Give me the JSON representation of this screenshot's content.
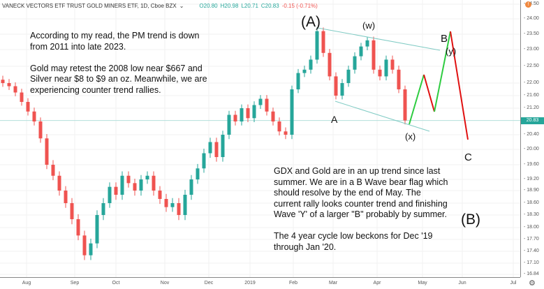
{
  "header": {
    "symbol": "VANECK VECTORS ETF TRUST GOLD MINERS ETF, 1D, Cboe BZX",
    "open": "O20.80",
    "high": "H20.98",
    "low": "L20.71",
    "close": "C20.83",
    "change": "-0.15 (-0.71%)"
  },
  "colors": {
    "up": "#26a69a",
    "down": "#ef5350",
    "channel": "#80cbc4",
    "wave_up": "#2ecc40",
    "wave_down": "#e01010"
  },
  "chart_data": {
    "type": "candlestick",
    "y_scale": "log",
    "current_price": "20.83",
    "y_ticks": [
      "24.50",
      "24.00",
      "23.50",
      "23.00",
      "22.50",
      "22.00",
      "21.60",
      "21.20",
      "20.40",
      "20.00",
      "19.60",
      "19.20",
      "18.90",
      "18.60",
      "18.30",
      "18.00",
      "17.70",
      "17.40",
      "17.10",
      "16.84"
    ],
    "x_ticks": [
      "Aug",
      "Sep",
      "Oct",
      "Nov",
      "Dec",
      "2019",
      "Feb",
      "Mar",
      "Apr",
      "May",
      "Jun",
      "Jul"
    ],
    "closes": [
      22.0,
      21.9,
      21.7,
      21.4,
      21.1,
      20.8,
      20.3,
      19.6,
      19.3,
      18.9,
      18.6,
      18.2,
      17.8,
      17.3,
      17.6,
      18.3,
      18.6,
      19.0,
      18.8,
      19.3,
      19.1,
      18.9,
      19.2,
      19.3,
      18.9,
      18.7,
      18.5,
      18.6,
      18.3,
      18.8,
      19.2,
      19.5,
      19.9,
      20.2,
      19.8,
      20.4,
      21.0,
      20.8,
      21.2,
      20.9,
      21.3,
      21.5,
      21.1,
      20.8,
      20.5,
      20.4,
      21.8,
      22.3,
      22.4,
      22.7,
      23.6,
      22.9,
      22.2,
      21.6,
      22.0,
      22.4,
      22.8,
      23.1,
      23.3,
      22.4,
      22.2,
      22.7,
      22.4,
      21.8,
      20.83
    ]
  },
  "annotations": {
    "left_note": "According to my read, the PM trend is down\nfrom 2011 into late 2023.\n\nGold may retest the 2008 low near $667 and\nSilver near $8 to $9 an oz. Meanwhile, we are\nexperiencing counter trend rallies.",
    "right_note": "GDX and Gold are in an up trend since last\nsummer.  We are in a B Wave bear flag which\nshould resolve by the end of May.  The\ncurrent rally looks counter trend and finishing\nWave 'Y' of a larger \"B\" probably by summer.\n\nThe 4 year cycle low beckons for Dec '19\nthrough Jan '20.",
    "A_paren": "(A)",
    "w": "(w)",
    "B": "B",
    "y": "(y)",
    "A": "A",
    "x": "(x)",
    "C": "C",
    "B_paren": "(B)"
  }
}
